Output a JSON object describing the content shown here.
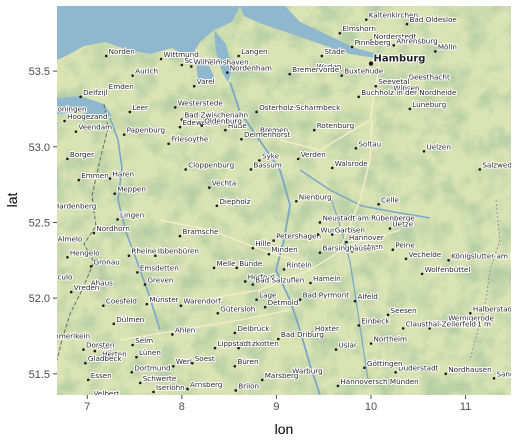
{
  "x_axis": {
    "title": "lon",
    "ticks": [
      7,
      8,
      9,
      10,
      11
    ],
    "range": [
      6.68,
      11.48
    ]
  },
  "y_axis": {
    "title": "lat",
    "ticks": [
      51.5,
      52.0,
      52.5,
      53.0,
      53.5
    ],
    "range": [
      51.36,
      53.93
    ]
  },
  "colors": {
    "sea": "#8fb8cf",
    "land": "#d9e3b4",
    "forest": "#7ea070",
    "river": "#7aa6c8",
    "road": "#f3ecc9",
    "tick": "#4d4d4d"
  },
  "places": [
    {
      "name": "Kaltenkirchen",
      "lon": 9.95,
      "lat": 53.84
    },
    {
      "name": "Bad Oldesloe",
      "lon": 10.38,
      "lat": 53.81
    },
    {
      "name": "Elmshorn",
      "lon": 9.67,
      "lat": 53.75
    },
    {
      "name": "Norderstedt",
      "lon": 10.0,
      "lat": 53.7
    },
    {
      "name": "Mölln",
      "lon": 10.68,
      "lat": 53.63
    },
    {
      "name": "Norden",
      "lon": 7.2,
      "lat": 53.6
    },
    {
      "name": "Langen",
      "lon": 8.6,
      "lat": 53.6
    },
    {
      "name": "Pinneberg",
      "lon": 9.8,
      "lat": 53.66
    },
    {
      "name": "Stade",
      "lon": 9.48,
      "lat": 53.6
    },
    {
      "name": "Ahrensburg",
      "lon": 10.24,
      "lat": 53.67
    },
    {
      "name": "Wittmund",
      "lon": 7.78,
      "lat": 53.58
    },
    {
      "name": "Schortens",
      "lon": 8.0,
      "lat": 53.54
    },
    {
      "name": "Hamburg",
      "lon": 10.0,
      "lat": 53.55,
      "big": true
    },
    {
      "name": "Aurich",
      "lon": 7.48,
      "lat": 53.47
    },
    {
      "name": "Wilhelmshaven",
      "lon": 8.1,
      "lat": 53.53
    },
    {
      "name": "Nordenham",
      "lon": 8.48,
      "lat": 53.49
    },
    {
      "name": "Weden",
      "lon": 9.4,
      "lat": 53.5
    },
    {
      "name": "Buxtehude",
      "lon": 9.69,
      "lat": 53.47
    },
    {
      "name": "Geesthacht",
      "lon": 10.37,
      "lat": 53.43
    },
    {
      "name": "Seevetal",
      "lon": 10.05,
      "lat": 53.4
    },
    {
      "name": "Emden",
      "lon": 7.2,
      "lat": 53.37
    },
    {
      "name": "Varel",
      "lon": 8.13,
      "lat": 53.4
    },
    {
      "name": "Bremervörde",
      "lon": 9.14,
      "lat": 53.48
    },
    {
      "name": "Delfzijl",
      "lon": 6.93,
      "lat": 53.33
    },
    {
      "name": "Winsen",
      "lon": 10.21,
      "lat": 53.36
    },
    {
      "name": "Osterholz-Scharmbeck",
      "lon": 8.79,
      "lat": 53.23
    },
    {
      "name": "Buchholz in der Nordheide",
      "lon": 9.87,
      "lat": 53.33
    },
    {
      "name": "Lüneburg",
      "lon": 10.41,
      "lat": 53.25
    },
    {
      "name": "Groningen",
      "lon": 6.57,
      "lat": 53.22
    },
    {
      "name": "Leer",
      "lon": 7.45,
      "lat": 53.23
    },
    {
      "name": "Westerstede",
      "lon": 7.93,
      "lat": 53.26
    },
    {
      "name": "Hoogezand",
      "lon": 6.76,
      "lat": 53.17
    },
    {
      "name": "Veendam",
      "lon": 6.88,
      "lat": 53.1
    },
    {
      "name": "Bad Zwischenahn",
      "lon": 8.0,
      "lat": 53.18
    },
    {
      "name": "Hude",
      "lon": 8.46,
      "lat": 53.11
    },
    {
      "name": "Bremen",
      "lon": 8.8,
      "lat": 53.08
    },
    {
      "name": "Papenburg",
      "lon": 7.39,
      "lat": 53.08
    },
    {
      "name": "Edewecht",
      "lon": 7.98,
      "lat": 53.13
    },
    {
      "name": "Oldenburg",
      "lon": 8.21,
      "lat": 53.14
    },
    {
      "name": "Rotenburg",
      "lon": 9.4,
      "lat": 53.11
    },
    {
      "name": "Delmenhorst",
      "lon": 8.63,
      "lat": 53.05
    },
    {
      "name": "Soltau",
      "lon": 9.84,
      "lat": 52.99
    },
    {
      "name": "Uelzen",
      "lon": 10.56,
      "lat": 52.97
    },
    {
      "name": "Borger",
      "lon": 6.79,
      "lat": 52.92
    },
    {
      "name": "Friesoythe",
      "lon": 7.86,
      "lat": 53.02
    },
    {
      "name": "Syke",
      "lon": 8.82,
      "lat": 52.91
    },
    {
      "name": "Verden",
      "lon": 9.23,
      "lat": 52.92
    },
    {
      "name": "Walsrode",
      "lon": 9.59,
      "lat": 52.86
    },
    {
      "name": "Emmen",
      "lon": 6.91,
      "lat": 52.78
    },
    {
      "name": "Haren",
      "lon": 7.24,
      "lat": 52.79
    },
    {
      "name": "Cloppenburg",
      "lon": 8.04,
      "lat": 52.85
    },
    {
      "name": "Bassum",
      "lon": 8.73,
      "lat": 52.85
    },
    {
      "name": "Salzwedel",
      "lon": 11.15,
      "lat": 52.85
    },
    {
      "name": "Meppen",
      "lon": 7.29,
      "lat": 52.69
    },
    {
      "name": "Vechta",
      "lon": 8.29,
      "lat": 52.73
    },
    {
      "name": "Nienburg",
      "lon": 9.21,
      "lat": 52.64
    },
    {
      "name": "Hardenberg",
      "lon": 6.62,
      "lat": 52.58
    },
    {
      "name": "Diepholz",
      "lon": 8.37,
      "lat": 52.61
    },
    {
      "name": "Neustadt am Rübenberge",
      "lon": 9.46,
      "lat": 52.5
    },
    {
      "name": "Celle",
      "lon": 10.08,
      "lat": 52.62
    },
    {
      "name": "Lingen",
      "lon": 7.32,
      "lat": 52.52
    },
    {
      "name": "Bramsche",
      "lon": 7.98,
      "lat": 52.41
    },
    {
      "name": "Petershagen",
      "lon": 8.97,
      "lat": 52.38
    },
    {
      "name": "Wunstorf",
      "lon": 9.44,
      "lat": 52.42
    },
    {
      "name": "Uetze",
      "lon": 10.2,
      "lat": 52.46
    },
    {
      "name": "Almelo",
      "lon": 6.66,
      "lat": 52.36
    },
    {
      "name": "Nordhorn",
      "lon": 7.07,
      "lat": 52.43
    },
    {
      "name": "Garbsen",
      "lon": 9.59,
      "lat": 52.42
    },
    {
      "name": "Hannover",
      "lon": 9.74,
      "lat": 52.37
    },
    {
      "name": "Laatzen",
      "lon": 9.8,
      "lat": 52.31
    },
    {
      "name": "Peine",
      "lon": 10.23,
      "lat": 52.32
    },
    {
      "name": "Königslutter am Elm",
      "lon": 10.82,
      "lat": 52.25
    },
    {
      "name": "Hengelo",
      "lon": 6.79,
      "lat": 52.27
    },
    {
      "name": "Rheine",
      "lon": 7.44,
      "lat": 52.28
    },
    {
      "name": "Ibbenbüren",
      "lon": 7.72,
      "lat": 52.28
    },
    {
      "name": "Hille",
      "lon": 8.75,
      "lat": 52.33
    },
    {
      "name": "Minden",
      "lon": 8.92,
      "lat": 52.29
    },
    {
      "name": "Barsinghausen",
      "lon": 9.46,
      "lat": 52.3
    },
    {
      "name": "Vechelde",
      "lon": 10.37,
      "lat": 52.26
    },
    {
      "name": "Gronau",
      "lon": 7.04,
      "lat": 52.21
    },
    {
      "name": "Emsdetten",
      "lon": 7.53,
      "lat": 52.17
    },
    {
      "name": "Bünde",
      "lon": 8.58,
      "lat": 52.2
    },
    {
      "name": "Rinteln",
      "lon": 9.08,
      "lat": 52.19
    },
    {
      "name": "Wolfenbüttel",
      "lon": 10.54,
      "lat": 52.16
    },
    {
      "name": "Greven",
      "lon": 7.61,
      "lat": 52.09
    },
    {
      "name": "Melle",
      "lon": 8.34,
      "lat": 52.2
    },
    {
      "name": "Herford",
      "lon": 8.67,
      "lat": 52.11
    },
    {
      "name": "Hameln",
      "lon": 9.36,
      "lat": 52.1
    },
    {
      "name": "Ahaus",
      "lon": 7.01,
      "lat": 52.07
    },
    {
      "name": "Bad Salzuflen",
      "lon": 8.75,
      "lat": 52.09
    },
    {
      "name": "Bad Pyrmont",
      "lon": 9.25,
      "lat": 51.99
    },
    {
      "name": "Alfeld",
      "lon": 9.83,
      "lat": 51.98
    },
    {
      "name": "Halberstadt",
      "lon": 11.05,
      "lat": 51.9
    },
    {
      "name": "Vreden",
      "lon": 6.83,
      "lat": 52.04
    },
    {
      "name": "Coesfeld",
      "lon": 7.17,
      "lat": 51.95
    },
    {
      "name": "Münster",
      "lon": 7.63,
      "lat": 51.96
    },
    {
      "name": "Warendorf",
      "lon": 7.99,
      "lat": 51.95
    },
    {
      "name": "Lage",
      "lon": 8.79,
      "lat": 51.99
    },
    {
      "name": "Detmold",
      "lon": 8.88,
      "lat": 51.94
    },
    {
      "name": "Seesen",
      "lon": 10.18,
      "lat": 51.89
    },
    {
      "name": "Brocken 1141 m",
      "lon": 10.62,
      "lat": 51.8
    },
    {
      "name": "Borculo",
      "lon": 6.53,
      "lat": 52.11
    },
    {
      "name": "Dülmen",
      "lon": 7.28,
      "lat": 51.83
    },
    {
      "name": "Gütersloh",
      "lon": 8.38,
      "lat": 51.9
    },
    {
      "name": "Einbeck",
      "lon": 9.87,
      "lat": 51.82
    },
    {
      "name": "Wernigerode",
      "lon": 10.79,
      "lat": 51.84
    },
    {
      "name": "Ahlen",
      "lon": 7.9,
      "lat": 51.76
    },
    {
      "name": "Delbrück",
      "lon": 8.56,
      "lat": 51.77
    },
    {
      "name": "Höxter",
      "lon": 9.38,
      "lat": 51.77
    },
    {
      "name": "Northeim",
      "lon": 10.0,
      "lat": 51.7
    },
    {
      "name": "Clausthal-Zellerfeld",
      "lon": 10.34,
      "lat": 51.8
    },
    {
      "name": "Emmerikein",
      "lon": 6.55,
      "lat": 51.72
    },
    {
      "name": "Marl",
      "lon": 7.08,
      "lat": 51.65
    },
    {
      "name": "Selm",
      "lon": 7.48,
      "lat": 51.69
    },
    {
      "name": "Salzkotten",
      "lon": 8.6,
      "lat": 51.67
    },
    {
      "name": "Bad Driburg",
      "lon": 9.02,
      "lat": 51.73
    },
    {
      "name": "Uslar",
      "lon": 9.63,
      "lat": 51.66
    },
    {
      "name": "Dorsten",
      "lon": 6.96,
      "lat": 51.66
    },
    {
      "name": "Herten",
      "lon": 7.13,
      "lat": 51.6
    },
    {
      "name": "Lünen",
      "lon": 7.52,
      "lat": 51.61
    },
    {
      "name": "Lippstadt",
      "lon": 8.35,
      "lat": 51.67
    },
    {
      "name": "Büren",
      "lon": 8.56,
      "lat": 51.55
    },
    {
      "name": "Warburg",
      "lon": 9.14,
      "lat": 51.49
    },
    {
      "name": "Duderstadt",
      "lon": 10.26,
      "lat": 51.51
    },
    {
      "name": "Nordhausen",
      "lon": 10.79,
      "lat": 51.5
    },
    {
      "name": "Gladbeck",
      "lon": 6.98,
      "lat": 51.57
    },
    {
      "name": "Essen",
      "lon": 7.01,
      "lat": 51.46
    },
    {
      "name": "Dortmund",
      "lon": 7.47,
      "lat": 51.51
    },
    {
      "name": "Schwerte",
      "lon": 7.56,
      "lat": 51.44
    },
    {
      "name": "Werl",
      "lon": 7.91,
      "lat": 51.55
    },
    {
      "name": "Soest",
      "lon": 8.11,
      "lat": 51.57
    },
    {
      "name": "Arnsberg",
      "lon": 8.06,
      "lat": 51.4
    },
    {
      "name": "Hannoversch Münden",
      "lon": 9.65,
      "lat": 51.42
    },
    {
      "name": "Göttingen",
      "lon": 9.93,
      "lat": 51.54
    },
    {
      "name": "Sangerhausen",
      "lon": 11.3,
      "lat": 51.47
    },
    {
      "name": "Brilon",
      "lon": 8.57,
      "lat": 51.39
    },
    {
      "name": "Marsberg",
      "lon": 8.85,
      "lat": 51.46
    },
    {
      "name": "Iserlohn",
      "lon": 7.7,
      "lat": 51.38
    },
    {
      "name": "Velbert",
      "lon": 7.04,
      "lat": 51.34
    }
  ]
}
